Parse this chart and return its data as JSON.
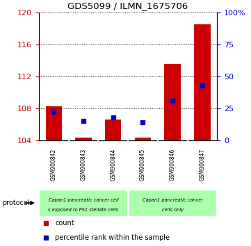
{
  "title": "GDS5099 / ILMN_1675706",
  "samples": [
    "GSM900842",
    "GSM900843",
    "GSM900844",
    "GSM900845",
    "GSM900846",
    "GSM900847"
  ],
  "count_values": [
    108.2,
    104.3,
    106.6,
    104.3,
    113.5,
    118.5
  ],
  "count_base": 104.0,
  "percentile_values": [
    22.0,
    15.0,
    18.0,
    14.0,
    31.0,
    43.0
  ],
  "ylim_left": [
    104,
    120
  ],
  "ylim_right": [
    0,
    100
  ],
  "yticks_left": [
    104,
    108,
    112,
    116,
    120
  ],
  "yticks_right": [
    0,
    25,
    50,
    75,
    100
  ],
  "ytick_labels_right": [
    "0",
    "25",
    "50",
    "75",
    "100%"
  ],
  "bar_color": "#cc0000",
  "square_color": "#0000cc",
  "grid_color": "#000000",
  "group1_label1": "Capan1 pancreatic cancer cell",
  "group1_label2": "s exposed to PS1 stellate cells",
  "group2_label1": "Capan1 pancreatic cancer",
  "group2_label2": "cells only",
  "group1_color": "#aaffaa",
  "group2_color": "#aaffaa",
  "sample_box_color": "#c8c8c8",
  "legend_count_label": "count",
  "legend_pct_label": "percentile rank within the sample",
  "protocol_label": "protocol",
  "bg_color": "#ffffff",
  "tick_color_left": "#cc0000",
  "tick_color_right": "#0000cc"
}
